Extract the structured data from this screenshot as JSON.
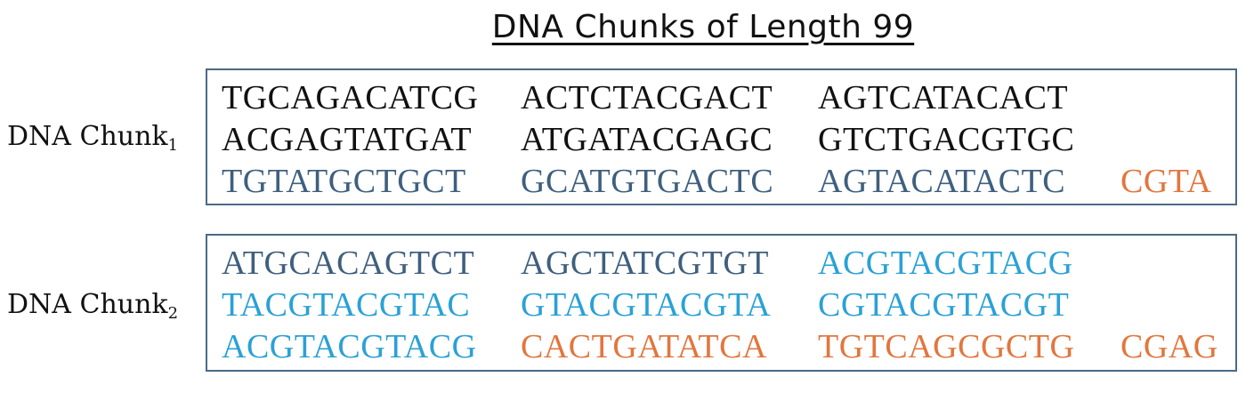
{
  "title": "DNA Chunks of Length 99",
  "colors": {
    "black": "#111111",
    "slate": "#3f5f7e",
    "cyan": "#2aa1d6",
    "orange": "#e2763e"
  },
  "chunks": [
    {
      "label": "DNA Chunk",
      "subscript": "1",
      "rows": [
        [
          {
            "text": "TGCAGACATCG",
            "color": "black"
          },
          {
            "text": "ACTCTACGACT",
            "color": "black"
          },
          {
            "text": "AGTCATACACT",
            "color": "black"
          },
          {
            "text": "",
            "color": "black"
          }
        ],
        [
          {
            "text": "ACGAGTATGAT",
            "color": "black"
          },
          {
            "text": "ATGATACGAGC",
            "color": "black"
          },
          {
            "text": "GTCTGACGTGC",
            "color": "black"
          },
          {
            "text": "",
            "color": "black"
          }
        ],
        [
          {
            "text": "TGTATGCTGCT",
            "color": "slate"
          },
          {
            "text": "GCATGTGACTC",
            "color": "slate"
          },
          {
            "text": "AGTACATACTC",
            "color": "slate"
          },
          {
            "text": "CGTA",
            "color": "orange"
          }
        ]
      ]
    },
    {
      "label": "DNA Chunk",
      "subscript": "2",
      "rows": [
        [
          {
            "text": "ATGCACAGTCT",
            "color": "slate"
          },
          {
            "text": "AGCTATCGTGT",
            "color": "slate"
          },
          {
            "text": "ACGTACGTACG",
            "color": "cyan"
          },
          {
            "text": "",
            "color": "black"
          }
        ],
        [
          {
            "text": "TACGTACGTAC",
            "color": "cyan"
          },
          {
            "text": "GTACGTACGTA",
            "color": "cyan"
          },
          {
            "text": "CGTACGTACGT",
            "color": "cyan"
          },
          {
            "text": "",
            "color": "black"
          }
        ],
        [
          {
            "text": "ACGTACGTACG",
            "color": "cyan"
          },
          {
            "text": "CACTGATATCA",
            "color": "orange"
          },
          {
            "text": "TGTCAGCGCTG",
            "color": "orange"
          },
          {
            "text": "CGAG",
            "color": "orange"
          }
        ]
      ]
    }
  ]
}
